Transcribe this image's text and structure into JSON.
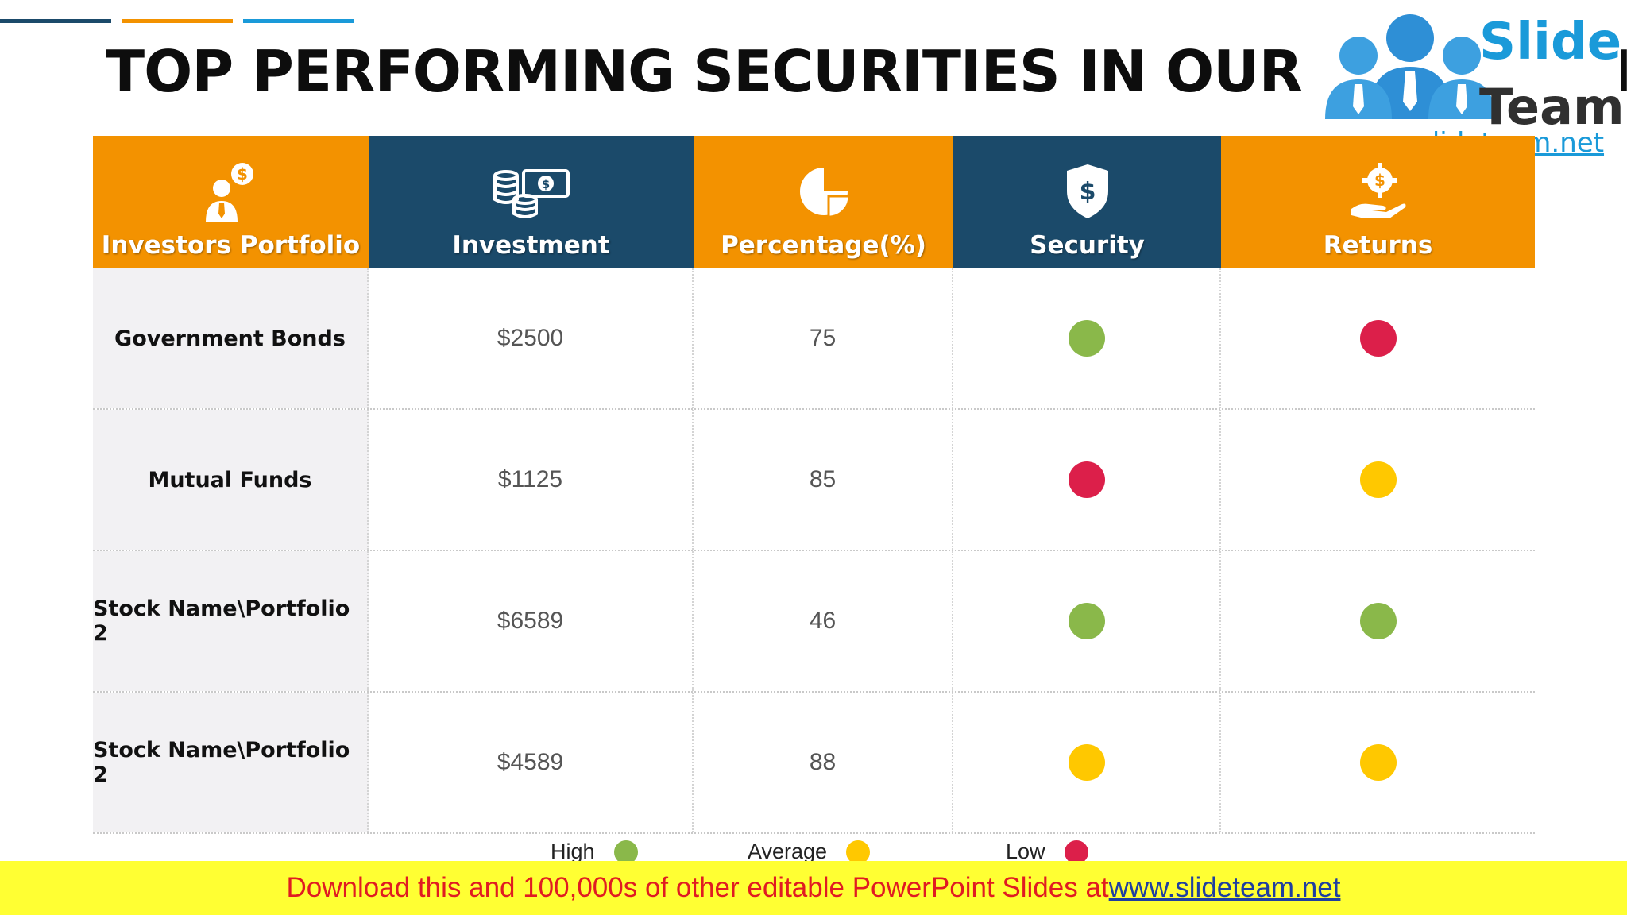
{
  "slide": {
    "title": "TOP PERFORMING SECURITIES IN OUR PORTFOLIO"
  },
  "accent_colors": [
    "#1b4a6a",
    "#f39200",
    "#1a9ad9"
  ],
  "logo": {
    "brand_top": "Slide",
    "brand_bottom": "Team",
    "url": "www.slideteam.net",
    "colors": {
      "blue": "#1a9ad9",
      "dark": "#303030"
    }
  },
  "table": {
    "headers": [
      {
        "label": "Investors Portfolio",
        "icon": "investor-dollar-icon",
        "color": "#f39200"
      },
      {
        "label": "Investment",
        "icon": "coins-cash-icon",
        "color": "#1b4a6a"
      },
      {
        "label": "Percentage(%)",
        "icon": "pie-chart-icon",
        "color": "#f39200"
      },
      {
        "label": "Security",
        "icon": "shield-dollar-icon",
        "color": "#1b4a6a"
      },
      {
        "label": "Returns",
        "icon": "hand-dollar-gear-icon",
        "color": "#f39200"
      }
    ],
    "rows": [
      {
        "name": "Government Bonds",
        "investment": "$2500",
        "percentage": "75",
        "security": "high",
        "returns": "low"
      },
      {
        "name": "Mutual Funds",
        "investment": "$1125",
        "percentage": "85",
        "security": "low",
        "returns": "average"
      },
      {
        "name": "Stock Name\\Portfolio 2",
        "investment": "$6589",
        "percentage": "46",
        "security": "high",
        "returns": "high"
      },
      {
        "name": "Stock Name\\Portfolio 2",
        "investment": "$4589",
        "percentage": "88",
        "security": "average",
        "returns": "average"
      }
    ]
  },
  "legend": {
    "high": {
      "label": "High",
      "color": "#8ab84a"
    },
    "average": {
      "label": "Average",
      "color": "#ffc800"
    },
    "low": {
      "label": "Low",
      "color": "#dc1f4a"
    }
  },
  "banner": {
    "text": "Download this and 100,000s of other editable PowerPoint Slides at ",
    "link": "www.slideteam.net",
    "background": "#ffff33"
  }
}
